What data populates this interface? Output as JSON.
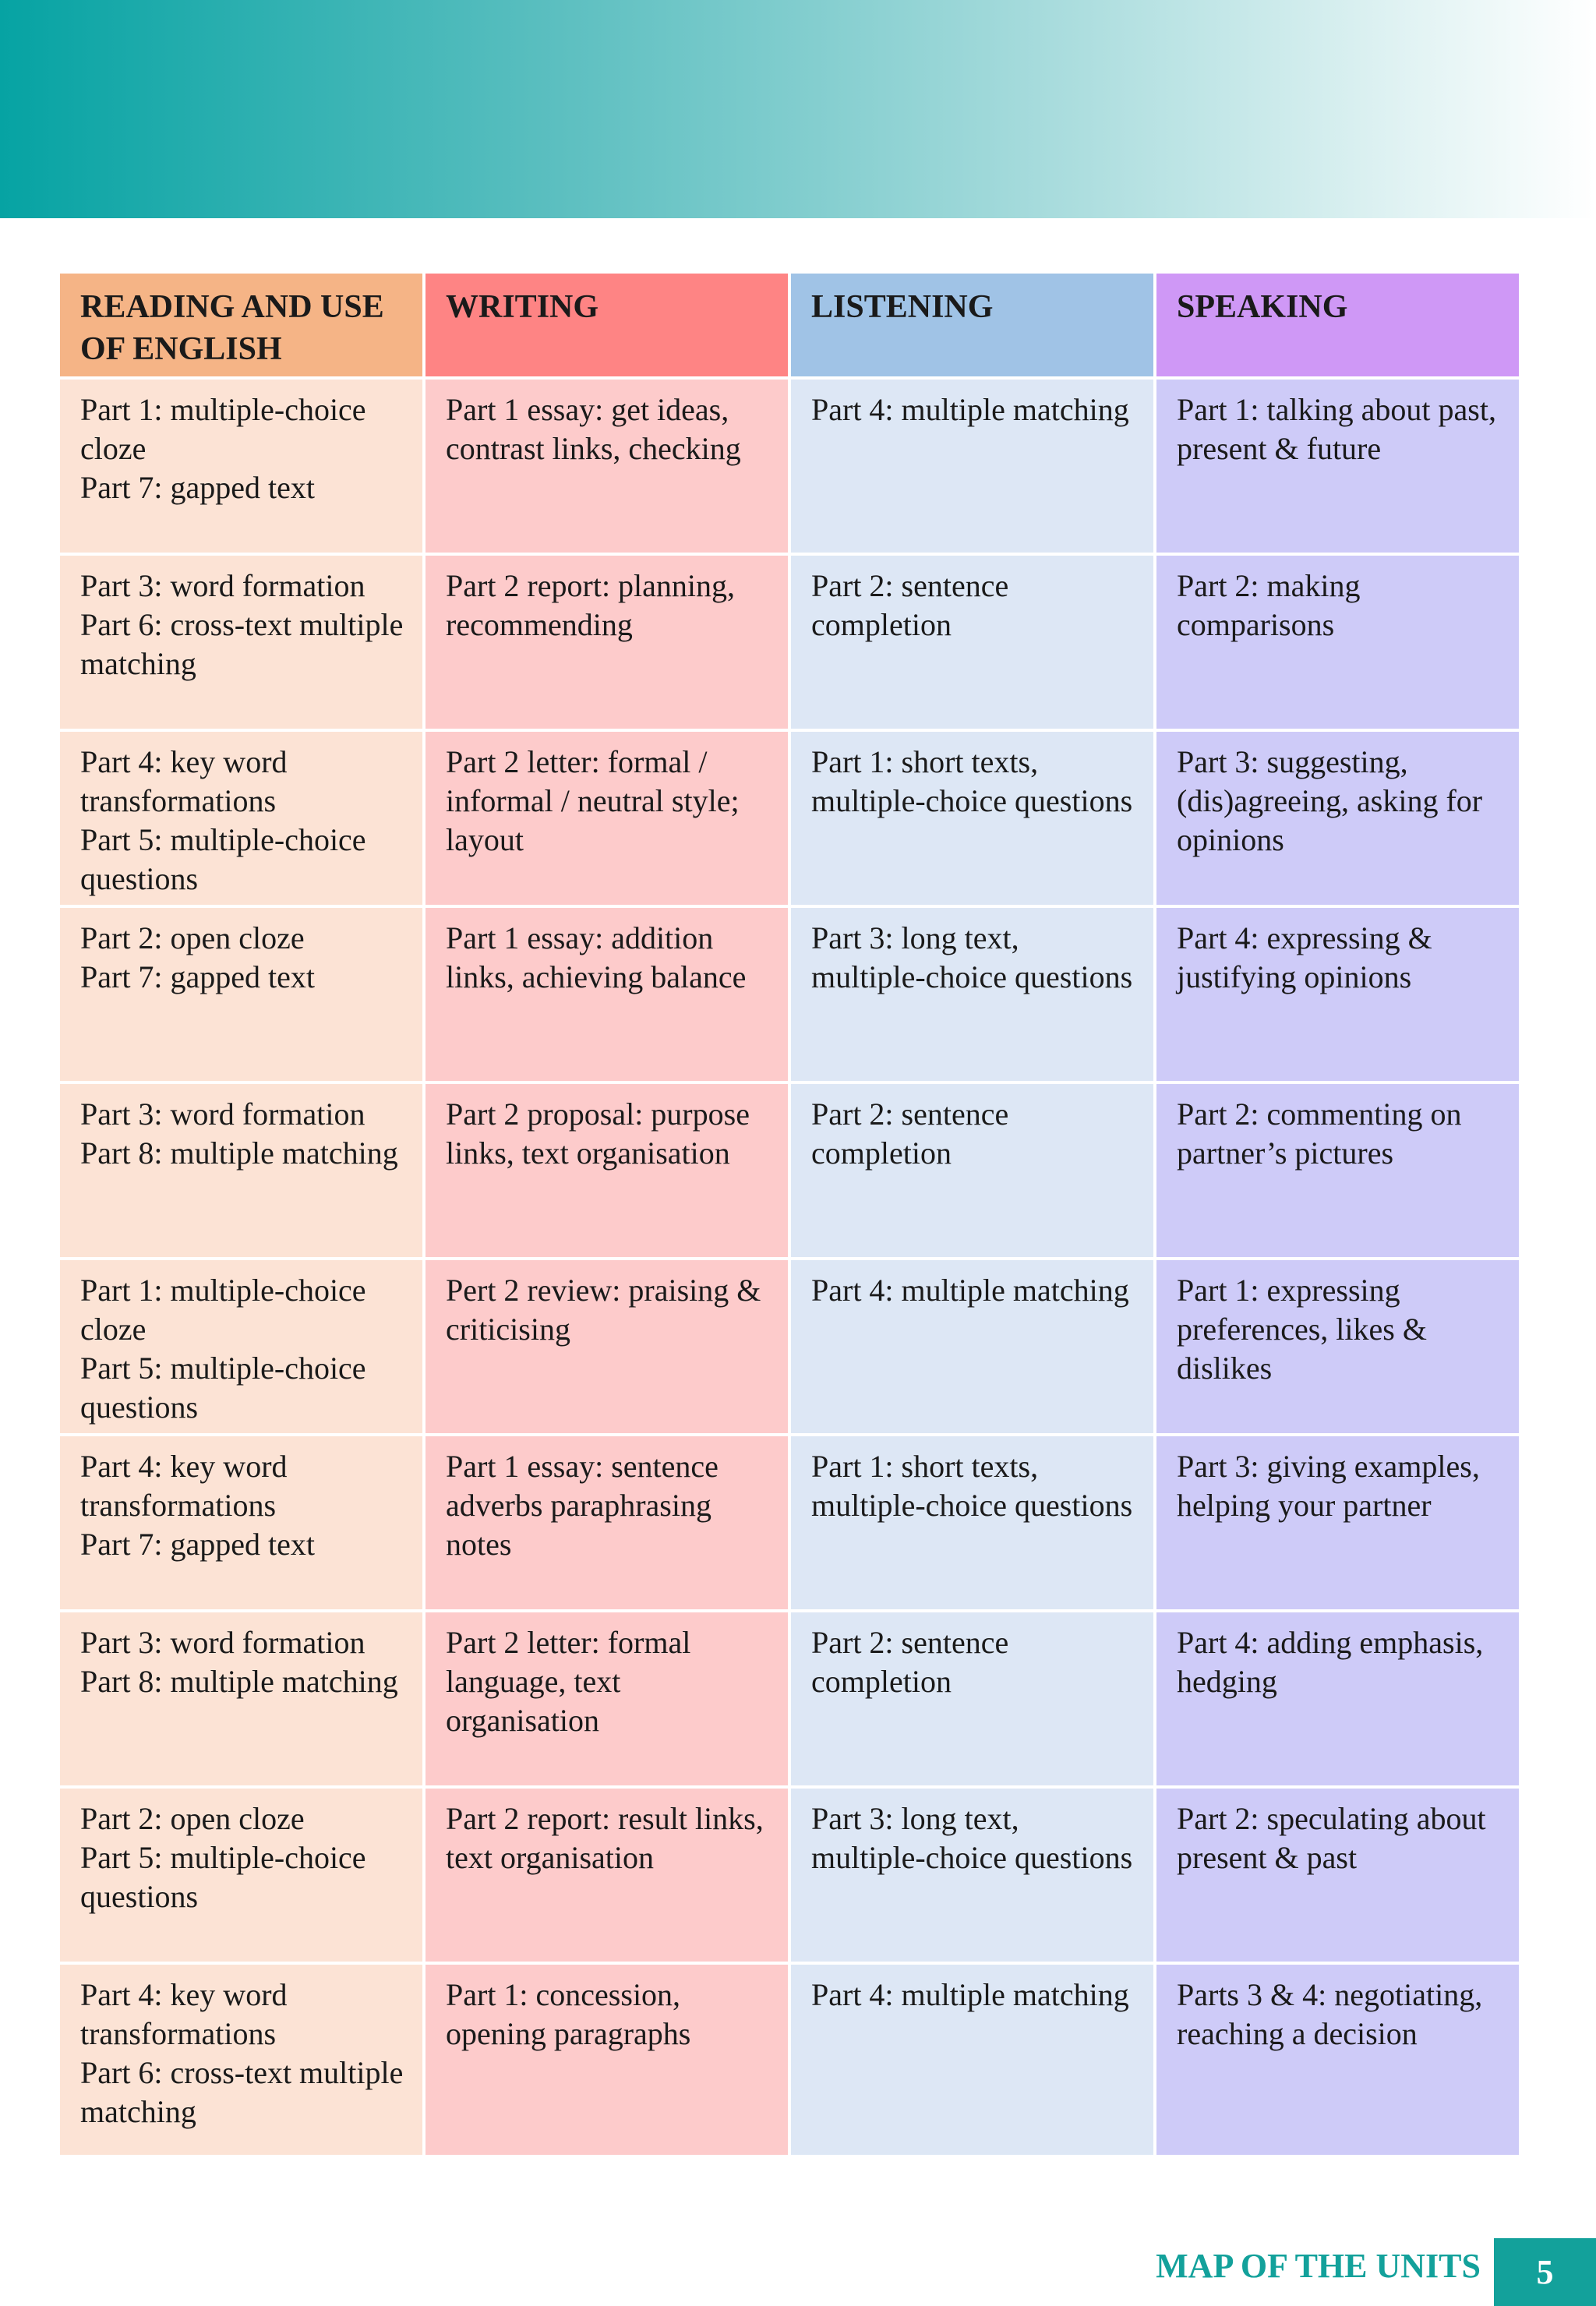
{
  "table": {
    "columns": [
      "READING AND USE OF ENGLISH",
      "WRITING",
      "LISTENING",
      "SPEAKING"
    ],
    "rows": [
      [
        [
          "Part 1: multiple-choice cloze",
          "Part 7: gapped text"
        ],
        [
          "Part 1 essay: get ideas, contrast links, checking"
        ],
        [
          "Part 4: multiple matching"
        ],
        [
          "Part 1: talking about past, present & future"
        ]
      ],
      [
        [
          "Part 3: word formation",
          "Part 6: cross-text multiple matching"
        ],
        [
          "Part 2 report: planning, recommending"
        ],
        [
          "Part 2: sentence completion"
        ],
        [
          "Part 2: making comparisons"
        ]
      ],
      [
        [
          "Part 4: key word transformations",
          "Part 5: multiple-choice questions"
        ],
        [
          "Part 2 letter: formal / informal / neutral style; layout"
        ],
        [
          "Part 1: short texts, multiple-choice questions"
        ],
        [
          "Part 3: suggesting, (dis)agreeing, asking for opinions"
        ]
      ],
      [
        [
          "Part 2: open cloze",
          "Part 7: gapped text"
        ],
        [
          "Part 1 essay: addition links, achieving balance"
        ],
        [
          "Part 3: long text, multiple-choice questions"
        ],
        [
          "Part 4: expressing & justifying opinions"
        ]
      ],
      [
        [
          "Part 3: word formation",
          "Part 8: multiple matching"
        ],
        [
          "Part 2 proposal: purpose links, text organisation"
        ],
        [
          "Part 2: sentence completion"
        ],
        [
          "Part 2: commenting on partner’s pictures"
        ]
      ],
      [
        [
          "Part 1: multiple-choice cloze",
          "Part 5: multiple-choice questions"
        ],
        [
          "Pert 2 review: praising & criticising"
        ],
        [
          "Part 4: multiple matching"
        ],
        [
          "Part 1: expressing preferences, likes & dislikes"
        ]
      ],
      [
        [
          "Part 4: key word transformations",
          "Part 7: gapped text"
        ],
        [
          "Part 1 essay: sentence adverbs paraphrasing notes"
        ],
        [
          "Part 1: short texts, multiple-choice questions"
        ],
        [
          "Part 3: giving examples, helping your partner"
        ]
      ],
      [
        [
          "Part 3: word formation",
          "Part 8: multiple matching"
        ],
        [
          "Part 2 letter: formal language, text organisation"
        ],
        [
          "Part 2: sentence completion"
        ],
        [
          "Part 4: adding emphasis, hedging"
        ]
      ],
      [
        [
          "Part 2: open cloze",
          "Part 5: multiple-choice questions"
        ],
        [
          "Part 2 report: result links, text organisation"
        ],
        [
          "Part 3: long text, multiple-choice questions"
        ],
        [
          "Part 2: speculating about present & past"
        ]
      ],
      [
        [
          "Part 4: key word transformations",
          "Part 6: cross-text multiple matching"
        ],
        [
          "Part 1: concession, opening paragraphs"
        ],
        [
          "Part 4: multiple matching"
        ],
        [
          "Parts 3 & 4: negotiating, reaching a decision"
        ]
      ]
    ]
  },
  "footer": {
    "section": "MAP OF THE UNITS",
    "page": "5"
  }
}
